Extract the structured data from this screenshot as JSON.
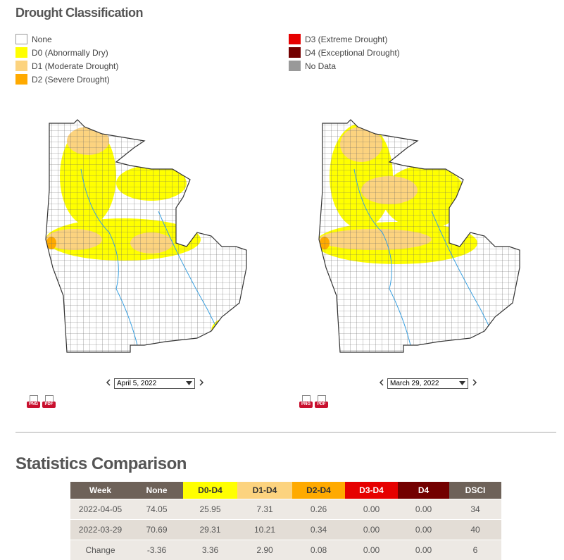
{
  "header": {
    "title": "Drought Classification"
  },
  "legend": {
    "items": [
      {
        "label": "None",
        "color": "#ffffff"
      },
      {
        "label": "D0 (Abnormally Dry)",
        "color": "#ffff00"
      },
      {
        "label": "D1 (Moderate Drought)",
        "color": "#fcd37f"
      },
      {
        "label": "D2 (Severe Drought)",
        "color": "#ffaa00"
      },
      {
        "label": "D3 (Extreme Drought)",
        "color": "#e60000"
      },
      {
        "label": "D4 (Exceptional Drought)",
        "color": "#730000"
      },
      {
        "label": "No Data",
        "color": "#999999"
      }
    ]
  },
  "maps": [
    {
      "date": "April 5, 2022",
      "downloads": [
        "PNG",
        "PDF"
      ]
    },
    {
      "date": "March 29, 2022",
      "downloads": [
        "PNG",
        "PDF"
      ]
    }
  ],
  "statistics": {
    "title": "Statistics Comparison",
    "table": {
      "columns": [
        {
          "label": "Week",
          "bg": "#6e6259",
          "fg": "#ffffff"
        },
        {
          "label": "None",
          "bg": "#6e6259",
          "fg": "#ffffff"
        },
        {
          "label": "D0-D4",
          "bg": "#ffff00",
          "fg": "#333333"
        },
        {
          "label": "D1-D4",
          "bg": "#fcd37f",
          "fg": "#333333"
        },
        {
          "label": "D2-D4",
          "bg": "#ffaa00",
          "fg": "#333333"
        },
        {
          "label": "D3-D4",
          "bg": "#e60000",
          "fg": "#ffffff"
        },
        {
          "label": "D4",
          "bg": "#730000",
          "fg": "#ffffff"
        },
        {
          "label": "DSCI",
          "bg": "#6e6259",
          "fg": "#ffffff"
        }
      ],
      "rows": [
        [
          "2022-04-05",
          "74.05",
          "25.95",
          "7.31",
          "0.26",
          "0.00",
          "0.00",
          "34"
        ],
        [
          "2022-03-29",
          "70.69",
          "29.31",
          "10.21",
          "0.34",
          "0.00",
          "0.00",
          "40"
        ],
        [
          "Change",
          "-3.36",
          "3.36",
          "2.90",
          "0.08",
          "0.00",
          "0.00",
          "6"
        ]
      ]
    }
  }
}
